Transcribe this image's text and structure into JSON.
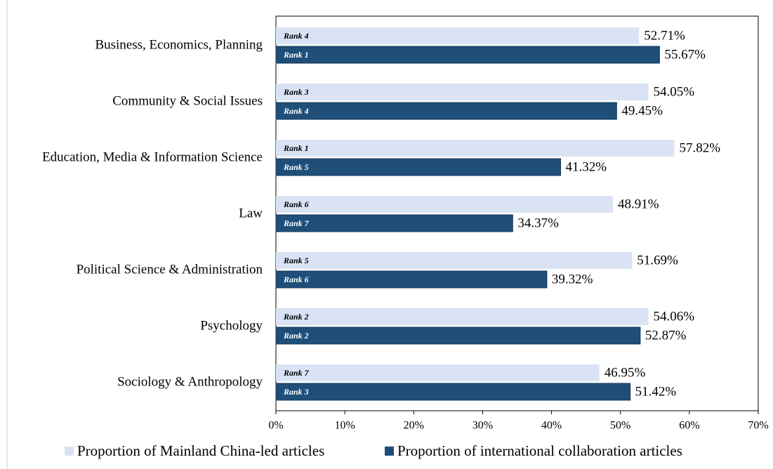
{
  "chart_data": {
    "type": "bar",
    "orientation": "horizontal",
    "categories": [
      "Business, Economics, Planning",
      "Community & Social Issues",
      "Education, Media & Information Science",
      "Law",
      "Political Science & Administration",
      "Psychology",
      "Sociology & Anthropology"
    ],
    "series": [
      {
        "name": "Proportion of Mainland China-led articles",
        "color": "#dae3f3",
        "values": [
          52.71,
          54.05,
          57.82,
          48.91,
          51.69,
          54.06,
          46.95
        ],
        "value_labels": [
          "52.71%",
          "54.05%",
          "57.82%",
          "48.91%",
          "51.69%",
          "54.06%",
          "46.95%"
        ],
        "ranks": [
          "Rank 4",
          "Rank 3",
          "Rank 1",
          "Rank 6",
          "Rank 5",
          "Rank 2",
          "Rank 7"
        ]
      },
      {
        "name": "Proportion of international collaboration articles",
        "color": "#1f4e79",
        "values": [
          55.67,
          49.45,
          41.32,
          34.37,
          39.32,
          52.87,
          51.42
        ],
        "value_labels": [
          "55.67%",
          "49.45%",
          "41.32%",
          "34.37%",
          "39.32%",
          "52.87%",
          "51.42%"
        ],
        "ranks": [
          "Rank 1",
          "Rank 4",
          "Rank 5",
          "Rank 7",
          "Rank 6",
          "Rank 2",
          "Rank 3"
        ]
      }
    ],
    "xlim": [
      0,
      70
    ],
    "xticks": [
      {
        "value": 0,
        "label": "0%"
      },
      {
        "value": 10,
        "label": "10%"
      },
      {
        "value": 20,
        "label": "20%"
      },
      {
        "value": 30,
        "label": "30%"
      },
      {
        "value": 40,
        "label": "40%"
      },
      {
        "value": 50,
        "label": "50%"
      },
      {
        "value": 60,
        "label": "60%"
      },
      {
        "value": 70,
        "label": "70%"
      }
    ],
    "grid": false,
    "legend": "bottom"
  }
}
